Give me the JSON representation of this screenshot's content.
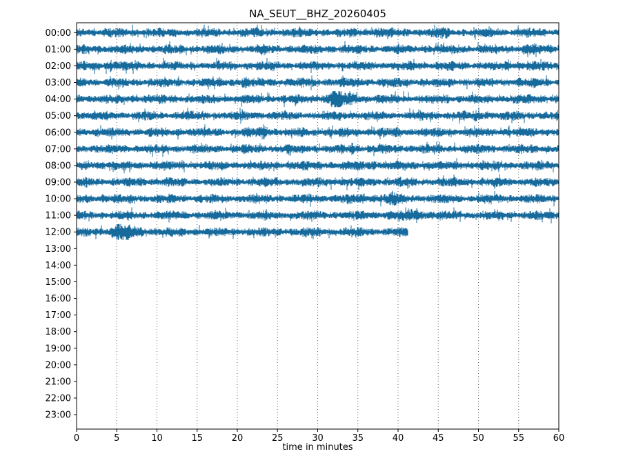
{
  "chart_data": {
    "type": "line",
    "subtype": "seismogram-dayplot-helicorder",
    "title": "NA_SEUT__BHZ_20260405",
    "xlabel": "time in minutes",
    "ylabel": "",
    "xlim": [
      0,
      60
    ],
    "x_ticks": [
      0,
      5,
      10,
      15,
      20,
      25,
      30,
      35,
      40,
      45,
      50,
      55,
      60
    ],
    "grid": {
      "vertical_dotted_gridlines_every_minutes": 5,
      "horizontal": false
    },
    "legend": "none",
    "trace_color": "#176a9c",
    "grid_color": "#606060",
    "axis_color": "#000000",
    "rows": [
      {
        "label": "00:00",
        "has_data": true,
        "start_minute": 0,
        "end_minute": 60,
        "events": [
          {
            "minute": 37.2,
            "amp": 1.35,
            "sigma": 1.0
          },
          {
            "minute": 45.6,
            "amp": 1.4,
            "sigma": 0.4
          }
        ]
      },
      {
        "label": "01:00",
        "has_data": true,
        "start_minute": 0,
        "end_minute": 60,
        "events": [
          {
            "minute": 56.2,
            "amp": 1.45,
            "sigma": 0.7
          }
        ]
      },
      {
        "label": "02:00",
        "has_data": true,
        "start_minute": 0,
        "end_minute": 60,
        "events": [
          {
            "minute": 4.2,
            "amp": 1.65,
            "sigma": 0.7
          },
          {
            "minute": 56.5,
            "amp": 1.3,
            "sigma": 0.8
          }
        ]
      },
      {
        "label": "03:00",
        "has_data": true,
        "start_minute": 0,
        "end_minute": 60,
        "events": [
          {
            "minute": 20.9,
            "amp": 1.55,
            "sigma": 0.25
          }
        ]
      },
      {
        "label": "04:00",
        "has_data": true,
        "start_minute": 0,
        "end_minute": 60,
        "events": [
          {
            "minute": 32.1,
            "amp": 3.1,
            "sigma": 0.4
          },
          {
            "minute": 33.2,
            "amp": 1.5,
            "sigma": 1.2
          }
        ]
      },
      {
        "label": "05:00",
        "has_data": true,
        "start_minute": 0,
        "end_minute": 60,
        "events": [
          {
            "minute": 50.5,
            "amp": 1.25,
            "sigma": 0.8
          }
        ]
      },
      {
        "label": "06:00",
        "has_data": true,
        "start_minute": 0,
        "end_minute": 60,
        "events": [
          {
            "minute": 23.3,
            "amp": 2.3,
            "sigma": 0.3
          }
        ]
      },
      {
        "label": "07:00",
        "has_data": true,
        "start_minute": 0,
        "end_minute": 60,
        "events": [
          {
            "minute": 34.2,
            "amp": 1.9,
            "sigma": 0.18
          }
        ]
      },
      {
        "label": "08:00",
        "has_data": true,
        "start_minute": 0,
        "end_minute": 60,
        "events": [
          {
            "minute": 37.0,
            "amp": 1.3,
            "sigma": 0.9
          }
        ]
      },
      {
        "label": "09:00",
        "has_data": true,
        "start_minute": 0,
        "end_minute": 60,
        "events": [
          {
            "minute": 32.6,
            "amp": 1.3,
            "sigma": 0.4
          }
        ]
      },
      {
        "label": "10:00",
        "has_data": true,
        "start_minute": 0,
        "end_minute": 60,
        "events": [
          {
            "minute": 37.5,
            "amp": 1.3,
            "sigma": 2.0
          },
          {
            "minute": 39.6,
            "amp": 1.6,
            "sigma": 0.25
          }
        ]
      },
      {
        "label": "11:00",
        "has_data": true,
        "start_minute": 0,
        "end_minute": 60,
        "events": [
          {
            "minute": 42.3,
            "amp": 1.85,
            "sigma": 0.8
          }
        ]
      },
      {
        "label": "12:00",
        "has_data": true,
        "start_minute": 0,
        "end_minute": 41.2,
        "events": [
          {
            "minute": 5.3,
            "amp": 2.3,
            "sigma": 0.5
          },
          {
            "minute": 6.6,
            "amp": 1.4,
            "sigma": 1.3
          }
        ]
      },
      {
        "label": "13:00",
        "has_data": false,
        "start_minute": null,
        "end_minute": null,
        "events": []
      },
      {
        "label": "14:00",
        "has_data": false,
        "start_minute": null,
        "end_minute": null,
        "events": []
      },
      {
        "label": "15:00",
        "has_data": false,
        "start_minute": null,
        "end_minute": null,
        "events": []
      },
      {
        "label": "16:00",
        "has_data": false,
        "start_minute": null,
        "end_minute": null,
        "events": []
      },
      {
        "label": "17:00",
        "has_data": false,
        "start_minute": null,
        "end_minute": null,
        "events": []
      },
      {
        "label": "18:00",
        "has_data": false,
        "start_minute": null,
        "end_minute": null,
        "events": []
      },
      {
        "label": "19:00",
        "has_data": false,
        "start_minute": null,
        "end_minute": null,
        "events": []
      },
      {
        "label": "20:00",
        "has_data": false,
        "start_minute": null,
        "end_minute": null,
        "events": []
      },
      {
        "label": "21:00",
        "has_data": false,
        "start_minute": null,
        "end_minute": null,
        "events": []
      },
      {
        "label": "22:00",
        "has_data": false,
        "start_minute": null,
        "end_minute": null,
        "events": []
      },
      {
        "label": "23:00",
        "has_data": false,
        "start_minute": null,
        "end_minute": null,
        "events": []
      }
    ]
  }
}
